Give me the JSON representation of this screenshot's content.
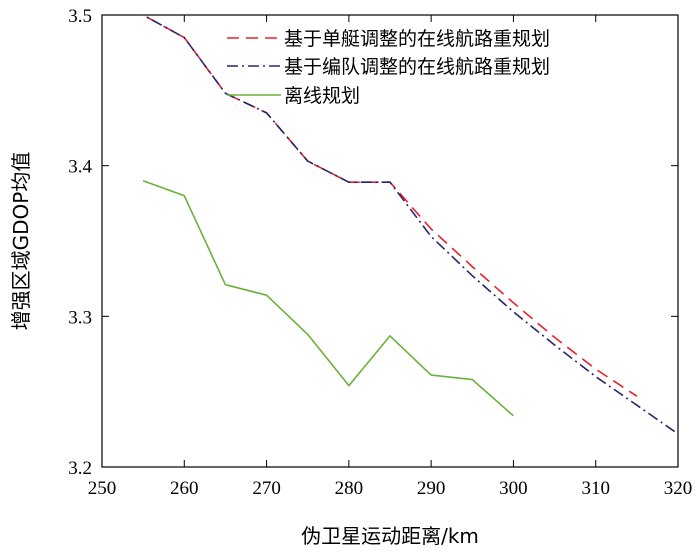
{
  "chart_data": {
    "type": "line",
    "title": "",
    "xlabel": "伪卫星运动距离/km",
    "ylabel": "增强区域GDOP均值",
    "xlim": [
      250,
      320
    ],
    "ylim": [
      3.2,
      3.5
    ],
    "xticks": [
      250,
      260,
      270,
      280,
      290,
      300,
      310,
      320
    ],
    "yticks": [
      3.2,
      3.3,
      3.4,
      3.5
    ],
    "xtick_labels": [
      "250",
      "260",
      "270",
      "280",
      "290",
      "300",
      "310",
      "320"
    ],
    "ytick_labels": [
      "3.2",
      "3.3",
      "3.4",
      "3.5"
    ],
    "grid": false,
    "legend_position": "top-right",
    "series": [
      {
        "name": "基于单艇调整的在线航路重规划",
        "color": "#e8202a",
        "style": "dashed",
        "x": [
          250,
          255,
          260,
          265,
          270,
          275,
          280,
          285,
          290,
          295,
          300,
          305,
          310,
          315
        ],
        "y": [
          3.522,
          3.5,
          3.485,
          3.448,
          3.435,
          3.403,
          3.389,
          3.389,
          3.358,
          3.333,
          3.309,
          3.286,
          3.265,
          3.247
        ]
      },
      {
        "name": "基于编队调整的在线航路重规划",
        "color": "#26266e",
        "style": "dashdot",
        "x": [
          250,
          255,
          260,
          265,
          270,
          275,
          280,
          285,
          290,
          295,
          300,
          305,
          310,
          315,
          320
        ],
        "y": [
          3.522,
          3.5,
          3.485,
          3.448,
          3.435,
          3.403,
          3.389,
          3.389,
          3.353,
          3.327,
          3.303,
          3.281,
          3.26,
          3.241,
          3.222
        ]
      },
      {
        "name": "离线规划",
        "color": "#6ab23a",
        "style": "solid",
        "x": [
          255,
          260,
          265,
          270,
          275,
          280,
          285,
          290,
          295,
          300
        ],
        "y": [
          3.39,
          3.38,
          3.321,
          3.314,
          3.288,
          3.254,
          3.287,
          3.261,
          3.258,
          3.234
        ]
      }
    ]
  }
}
